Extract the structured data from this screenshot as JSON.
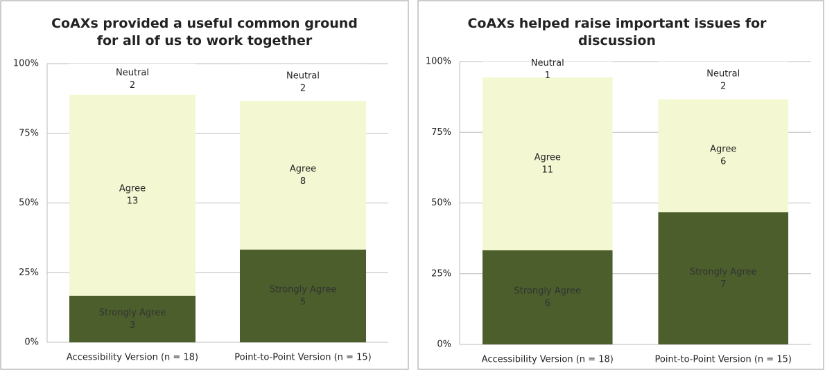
{
  "chart_data": [
    {
      "type": "bar",
      "stacked": true,
      "title": "CoAXs provided a useful common ground for all of us to work together",
      "categories": [
        "Accessibility Version (n = 18)",
        "Point-to-Point Version (n = 15)"
      ],
      "series": [
        {
          "name": "Strongly Agree",
          "color": "#4b5e2b",
          "values": [
            16.7,
            33.3
          ],
          "counts": [
            3,
            5
          ]
        },
        {
          "name": "Agree",
          "color": "#f3f8d2",
          "values": [
            72.2,
            53.3
          ],
          "counts": [
            13,
            8
          ]
        },
        {
          "name": "Neutral",
          "color": "#ffffff",
          "values": [
            11.1,
            13.3
          ],
          "counts": [
            2,
            2
          ]
        }
      ],
      "ylim": [
        0,
        100
      ],
      "yticks": [
        {
          "value": 0,
          "label": "0%"
        },
        {
          "value": 25,
          "label": "25%"
        },
        {
          "value": 50,
          "label": "50%"
        },
        {
          "value": 75,
          "label": "75%"
        },
        {
          "value": 100,
          "label": "100%"
        }
      ],
      "grid": true
    },
    {
      "type": "bar",
      "stacked": true,
      "title": "CoAXs helped raise important issues for discussion",
      "categories": [
        "Accessibility Version (n = 18)",
        "Point-to-Point Version (n = 15)"
      ],
      "series": [
        {
          "name": "Strongly Agree",
          "color": "#4b5e2b",
          "values": [
            33.3,
            46.7
          ],
          "counts": [
            6,
            7
          ]
        },
        {
          "name": "Agree",
          "color": "#f3f8d2",
          "values": [
            61.1,
            40.0
          ],
          "counts": [
            11,
            6
          ]
        },
        {
          "name": "Neutral",
          "color": "#ffffff",
          "values": [
            5.6,
            13.3
          ],
          "counts": [
            1,
            2
          ]
        }
      ],
      "ylim": [
        0,
        100
      ],
      "yticks": [
        {
          "value": 0,
          "label": "0%"
        },
        {
          "value": 25,
          "label": "25%"
        },
        {
          "value": 50,
          "label": "50%"
        },
        {
          "value": 75,
          "label": "75%"
        },
        {
          "value": 100,
          "label": "100%"
        }
      ],
      "grid": true
    }
  ]
}
